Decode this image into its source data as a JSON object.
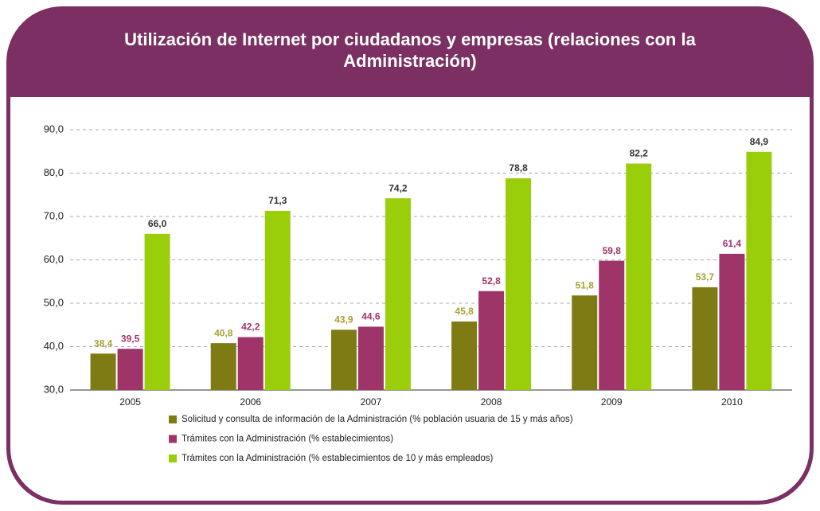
{
  "chart_data": {
    "type": "bar",
    "title": "Utilización de Internet por ciudadanos y empresas (relaciones con la Administración)",
    "categories": [
      "2005",
      "2006",
      "2007",
      "2008",
      "2009",
      "2010"
    ],
    "series": [
      {
        "name": "Solicitud y consulta de información de la Administración (% población usuaria de 15 y más años)",
        "color": "#7f7b14",
        "label_color": "#a8a232",
        "values": [
          38.4,
          40.8,
          43.9,
          45.8,
          51.8,
          53.7
        ],
        "value_labels": [
          "38,4",
          "40,8",
          "43,9",
          "45,8",
          "51,8",
          "53,7"
        ]
      },
      {
        "name": "Trámites con la Administración (% establecimientos)",
        "color": "#9e3468",
        "label_color": "#a0336b",
        "values": [
          39.5,
          42.2,
          44.6,
          52.8,
          59.8,
          61.4
        ],
        "value_labels": [
          "39,5",
          "42,2",
          "44,6",
          "52,8",
          "59,8",
          "61,4"
        ]
      },
      {
        "name": "Trámites con la Administración (% establecimientos de 10 y más empleados)",
        "color": "#9acd0a",
        "label_color": "#333333",
        "values": [
          66.0,
          71.3,
          74.2,
          78.8,
          82.2,
          84.9
        ],
        "value_labels": [
          "66,0",
          "71,3",
          "74,2",
          "78,8",
          "82,2",
          "84,9"
        ]
      }
    ],
    "ylim": [
      30,
      90
    ],
    "yticks": [
      {
        "value": 30,
        "label": "30,0"
      },
      {
        "value": 40,
        "label": "40,0"
      },
      {
        "value": 50,
        "label": "50,0"
      },
      {
        "value": 60,
        "label": "60,0"
      },
      {
        "value": 70,
        "label": "70,0"
      },
      {
        "value": 80,
        "label": "80,0"
      },
      {
        "value": 90,
        "label": "90,0"
      }
    ],
    "grid": true
  }
}
